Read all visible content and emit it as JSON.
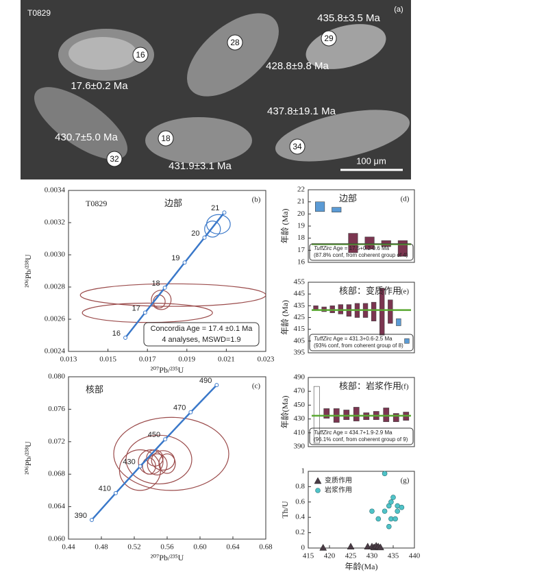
{
  "image_panel": {
    "label": "(a)",
    "sample": "T0829",
    "spots": [
      "16",
      "28",
      "29",
      "32",
      "18",
      "34"
    ],
    "ages": [
      "17.6±0.2 Ma",
      "428.8±9.8 Ma",
      "435.8±3.5 Ma",
      "430.7±5.0 Ma",
      "431.9±3.1 Ma",
      "437.8±19.1 Ma"
    ],
    "scale_bar": "100 μm"
  },
  "chart_data": [
    {
      "type": "concordia",
      "panel_label": "(b)",
      "sample": "T0829",
      "title": "边部",
      "x_label": "²⁰⁷Pb/²³⁵U",
      "y_label": "²⁰⁶Pb/²³⁸U",
      "xlim": [
        0.013,
        0.023
      ],
      "xticks": [
        0.013,
        0.015,
        0.017,
        0.019,
        0.021,
        0.023
      ],
      "ylim": [
        0.0024,
        0.0034
      ],
      "yticks": [
        0.0024,
        0.0026,
        0.0028,
        {
          "value": 0.003,
          "label": "0.0030"
        },
        0.0032,
        0.0034
      ],
      "concordia": {
        "color": "#3a78c9",
        "ages": [
          16,
          17,
          18,
          19,
          20,
          21
        ],
        "x": [
          0.015883,
          0.016883,
          0.017885,
          0.018888,
          0.019892,
          0.020897
        ],
        "y": [
          0.002485,
          0.002641,
          0.002796,
          0.002952,
          0.003107,
          0.003263
        ]
      },
      "ellipse_groups": [
        {
          "color": "#9a4a4a",
          "x": [
            0.0183,
            0.017,
            0.0177,
            0.0176
          ],
          "y": [
            0.00275,
            0.00264,
            0.00272,
            0.00271
          ],
          "x_err": [
            0.0047,
            0.0033,
            0.0005,
            0.0003
          ],
          "y_err": [
            7e-05,
            6e-05,
            6e-05,
            4e-05
          ]
        },
        {
          "color": "#3a78c9",
          "x": [
            0.0206,
            0.0203
          ],
          "y": [
            0.00319,
            0.00316
          ],
          "x_err": [
            0.0006,
            0.0004
          ],
          "y_err": [
            6e-05,
            5e-05
          ]
        }
      ],
      "annotation": [
        "Concordia Age = 17.4 ±0.1 Ma",
        "4 analyses, MSWD=1.9"
      ]
    },
    {
      "type": "concordia",
      "panel_label": "(c)",
      "title": "核部",
      "x_label": "²⁰⁷Pb/²³⁵U",
      "y_label": "²⁰⁶Pb/²³⁸U",
      "xlim": [
        0.44,
        0.68
      ],
      "xticks": [
        0.44,
        0.48,
        0.52,
        0.56,
        {
          "value": 0.6,
          "label": "0.60"
        },
        0.64,
        0.68
      ],
      "ylim": [
        0.06,
        0.08
      ],
      "yticks": [
        {
          "value": 0.06,
          "label": "0.060"
        },
        0.064,
        0.068,
        0.072,
        0.076,
        {
          "value": 0.08,
          "label": "0.080"
        }
      ],
      "concordia": {
        "color": "#3a78c9",
        "ages": [
          390,
          410,
          430,
          450,
          470,
          490
        ],
        "x": [
          0.46829,
          0.49745,
          0.52727,
          0.55764,
          0.58862,
          0.62027
        ],
        "y": [
          0.062366,
          0.065668,
          0.068979,
          0.072301,
          0.075633,
          0.078975
        ]
      },
      "ellipse_groups": [
        {
          "color": "#9a4a4a",
          "x": [
            0.565,
            0.55,
            0.527,
            0.54,
            0.548,
            0.555,
            0.545,
            0.538,
            0.56
          ],
          "y": [
            0.0705,
            0.0698,
            0.0685,
            0.0695,
            0.0692,
            0.0697,
            0.07,
            0.069,
            0.0693
          ],
          "x_err": [
            0.07,
            0.04,
            0.025,
            0.015,
            0.012,
            0.014,
            0.01,
            0.008,
            0.01
          ],
          "y_err": [
            0.0045,
            0.003,
            0.0025,
            0.0015,
            0.0013,
            0.0012,
            0.001,
            0.001,
            0.0012
          ]
        }
      ]
    },
    {
      "type": "range_bar",
      "panel_label": "(d)",
      "title": "边部",
      "y_label": "年龄 (Ma)",
      "ylim": [
        16,
        22
      ],
      "yticks": [
        16,
        17,
        18,
        19,
        20,
        21,
        22
      ],
      "values": [
        20.6,
        20.35,
        17.6,
        17.6,
        17.55,
        17.15
      ],
      "errors": [
        0.4,
        0.2,
        0.8,
        0.5,
        0.25,
        0.65
      ],
      "colors": [
        "#5b9bd5",
        "#5b9bd5",
        "#7b3550",
        "#7b3550",
        "#7b3550",
        "#7b3550"
      ],
      "mean": 17.5,
      "mean_color": "#5aa832",
      "annotation_italic": "TuffZirc",
      "annotation": [
        " Age = 17.5+0.2-0.6 Ma",
        "(87.8% conf, from coherent group of 4)"
      ]
    },
    {
      "type": "range_bar",
      "panel_label": "(e)",
      "title": "核部：变质作用",
      "y_label": "年龄 (Ma)",
      "ylim": [
        395,
        455
      ],
      "yticks": [
        395,
        405,
        415,
        425,
        435,
        445,
        455
      ],
      "values": [
        433,
        432,
        432,
        432,
        431,
        431,
        431,
        430,
        430,
        430,
        421,
        405
      ],
      "errors": [
        2,
        2,
        3,
        4,
        5,
        6,
        6,
        8,
        20,
        10,
        3,
        2
      ],
      "colors": [
        "#7b3550",
        "#7b3550",
        "#7b3550",
        "#7b3550",
        "#7b3550",
        "#7b3550",
        "#7b3550",
        "#7b3550",
        "#7b3550",
        "#7b3550",
        "#5b9bd5",
        "#5b9bd5"
      ],
      "mean": 431.3,
      "mean_color": "#5aa832",
      "annotation_italic": "TuffZirc",
      "annotation": [
        " Age = 431.3+0.6-2.5 Ma",
        "(93% conf, from coherent group of 8)"
      ]
    },
    {
      "type": "range_bar",
      "panel_label": "(f)",
      "title": "核部：岩浆作用",
      "y_label": "年龄(Ma)",
      "ylim": [
        390,
        490
      ],
      "yticks": [
        390,
        410,
        430,
        450,
        470,
        490
      ],
      "values": [
        436,
        438,
        435,
        436,
        437,
        434,
        435,
        436,
        432,
        434
      ],
      "errors": [
        41,
        7,
        10,
        7,
        10,
        5,
        6,
        10,
        6,
        6
      ],
      "colors": [
        "#ffffff",
        "#7b3550",
        "#7b3550",
        "#7b3550",
        "#7b3550",
        "#7b3550",
        "#7b3550",
        "#7b3550",
        "#7b3550",
        "#7b3550"
      ],
      "mean": 434.7,
      "mean_color": "#5aa832",
      "annotation_italic": "TuffZirc",
      "annotation": [
        " Age = 434.7+1.9-2.9 Ma",
        "(96.1% conf, from coherent group of 9)"
      ]
    },
    {
      "type": "scatter",
      "panel_label": "(g)",
      "x_label": "年龄(Ma)",
      "y_label": "Th/U",
      "legend": "upper left",
      "xlim": [
        415,
        440
      ],
      "xticks": [
        415,
        420,
        425,
        430,
        435,
        440
      ],
      "ylim": [
        0,
        1
      ],
      "yticks": [
        0,
        0.2,
        0.4,
        0.6,
        0.8,
        1
      ],
      "series": [
        {
          "name": "变质作用",
          "color": "#4a3b45",
          "marker": "triangle",
          "x": [
            418.5,
            425,
            429,
            430,
            430.5,
            431,
            431.5,
            432
          ],
          "values": [
            0.005,
            0.02,
            0.02,
            0.02,
            0.01,
            0.03,
            0.02,
            0.01
          ]
        },
        {
          "name": "岩浆作用",
          "color": "#4fc3c8",
          "marker": "circle",
          "x": [
            433,
            430,
            431.5,
            433,
            434,
            434.5,
            435,
            434,
            434.5,
            436,
            436,
            437,
            435.5
          ],
          "values": [
            0.97,
            0.48,
            0.38,
            0.48,
            0.55,
            0.6,
            0.66,
            0.28,
            0.38,
            0.48,
            0.55,
            0.53,
            0.38
          ]
        }
      ]
    }
  ]
}
